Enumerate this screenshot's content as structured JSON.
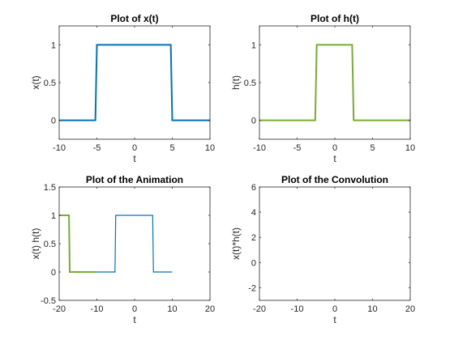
{
  "chart_data": [
    {
      "type": "line",
      "title": "Plot of x(t)",
      "xlabel": "t",
      "ylabel": "x(t)",
      "xlim": [
        -10,
        10
      ],
      "ylim": [
        -0.25,
        1.25
      ],
      "xticks": [
        -10,
        -5,
        0,
        5,
        10
      ],
      "yticks": [
        0,
        0.5,
        1
      ],
      "ytick_labels": [
        "0",
        "0.5",
        "1"
      ],
      "series": [
        {
          "color": "#0072BD",
          "width": 2,
          "x": [
            -10,
            -5.2,
            -5,
            4.8,
            5,
            10
          ],
          "y": [
            0,
            0,
            1,
            1,
            0,
            0
          ]
        }
      ]
    },
    {
      "type": "line",
      "title": "Plot of h(t)",
      "xlabel": "t",
      "ylabel": "h(t)",
      "xlim": [
        -10,
        10
      ],
      "ylim": [
        -0.25,
        1.25
      ],
      "xticks": [
        -10,
        -5,
        0,
        5,
        10
      ],
      "yticks": [
        0,
        0.5,
        1
      ],
      "ytick_labels": [
        "0",
        "0.5",
        "1"
      ],
      "series": [
        {
          "color": "#77AC30",
          "width": 2,
          "x": [
            -10,
            -2.6,
            -2.4,
            2.3,
            2.5,
            10
          ],
          "y": [
            0,
            0,
            1,
            1,
            0,
            0
          ]
        }
      ]
    },
    {
      "type": "line",
      "title": "Plot of the Animation",
      "xlabel": "t",
      "ylabel": "x(t) h(t)",
      "xlim": [
        -20,
        20
      ],
      "ylim": [
        -0.5,
        1.5
      ],
      "xticks": [
        -20,
        -10,
        0,
        10,
        20
      ],
      "yticks": [
        -0.5,
        0,
        0.5,
        1,
        1.5
      ],
      "ytick_labels": [
        "-0.5",
        "0",
        "0.5",
        "1",
        "1.5"
      ],
      "series": [
        {
          "color": "#0072BD",
          "width": 1.2,
          "x": [
            -10,
            -5.2,
            -5,
            4.8,
            5,
            10
          ],
          "y": [
            0,
            0,
            1,
            1,
            0,
            0
          ]
        },
        {
          "color": "#77AC30",
          "width": 2,
          "x": [
            -20,
            -17.4,
            -17.2,
            -10
          ],
          "y": [
            1,
            1,
            0,
            0
          ]
        }
      ]
    },
    {
      "type": "line",
      "title": "Plot of the Convolution",
      "xlabel": "t",
      "ylabel": "x(t)*h(t)",
      "xlim": [
        -20,
        20
      ],
      "ylim": [
        -3,
        6
      ],
      "xticks": [
        -20,
        -10,
        0,
        10,
        20
      ],
      "yticks": [
        -2,
        0,
        2,
        4,
        6
      ],
      "ytick_labels": [
        "-2",
        "0",
        "2",
        "4",
        "6"
      ],
      "series": []
    }
  ]
}
